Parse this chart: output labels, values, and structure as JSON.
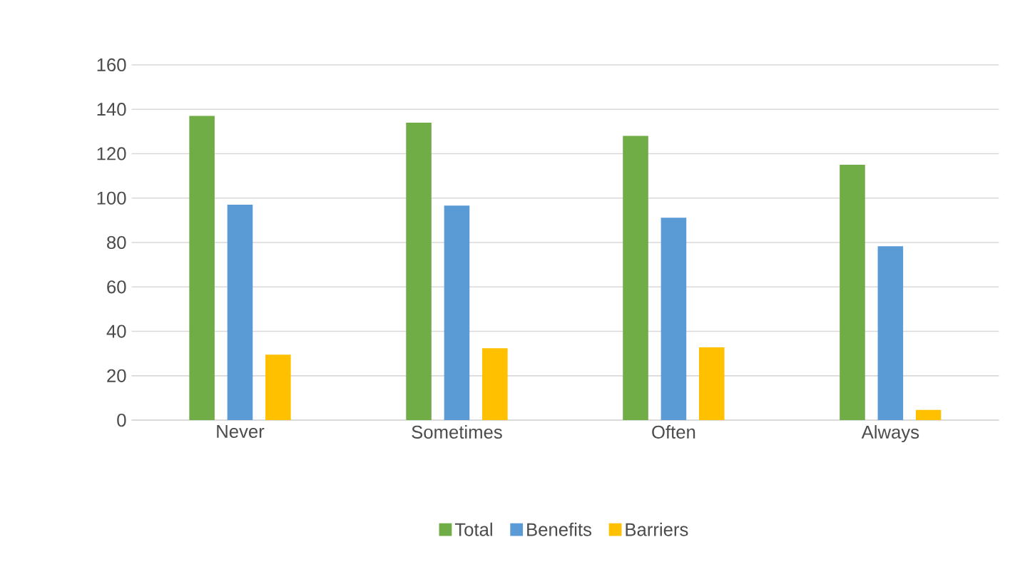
{
  "chart_data": {
    "type": "bar",
    "categories": [
      "Never",
      "Sometimes",
      "Often",
      "Always"
    ],
    "series": [
      {
        "name": "Total",
        "color": "#70ad47",
        "values": [
          137,
          134,
          128,
          115
        ]
      },
      {
        "name": "Benefits",
        "color": "#5b9bd5",
        "values": [
          97,
          96.6,
          91.2,
          78.3
        ]
      },
      {
        "name": "Barriers",
        "color": "#ffc000",
        "values": [
          29.5,
          32.4,
          32.8,
          4.6
        ]
      }
    ],
    "ylim": [
      0,
      160
    ],
    "yticks": [
      0,
      20,
      40,
      60,
      80,
      100,
      120,
      140,
      160
    ],
    "grid": "y",
    "legend": "bottom"
  }
}
